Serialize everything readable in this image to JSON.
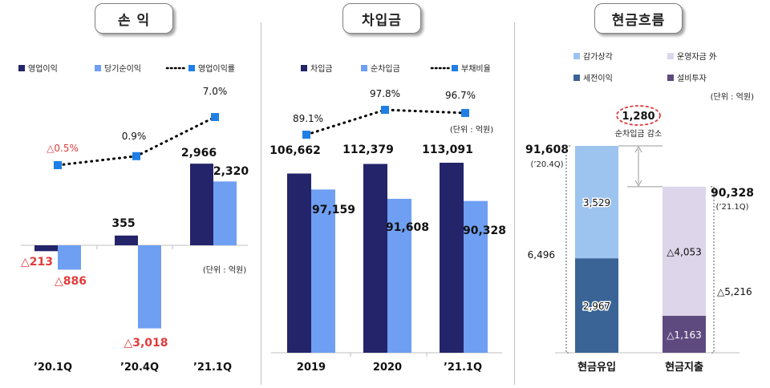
{
  "panels": {
    "profit": {
      "title": "손 익"
    },
    "debt": {
      "title": "차입금"
    },
    "cashflow": {
      "title": "현금흐름"
    }
  },
  "colors": {
    "navy": "#24246b",
    "light_blue": "#6f9ff2",
    "sky_blue": "#9dc3ef",
    "steel_blue": "#3a6496",
    "lavender": "#ddd5ea",
    "purple": "#5f4a7f",
    "marker_blue": "#1f7fe6",
    "negative_red": "#e03c3c",
    "divider": "#bfbfbf"
  },
  "chart_data": [
    {
      "type": "bar",
      "panel": "profit",
      "categories": [
        "’20.1Q",
        "’20.4Q",
        "’21.1Q"
      ],
      "series": [
        {
          "name": "영업이익",
          "values": [
            -213,
            355,
            2966
          ],
          "labels": [
            "△213",
            "355",
            "2,966"
          ]
        },
        {
          "name": "당기순이익",
          "values": [
            -886,
            -3018,
            2320
          ],
          "labels": [
            "△886",
            "△3,018",
            "2,320"
          ]
        }
      ],
      "line_series": {
        "name": "영업이익률",
        "values": [
          -0.5,
          0.9,
          7.0
        ],
        "labels": [
          "△0.5%",
          "0.9%",
          "7.0%"
        ]
      },
      "unit_note": "(단위 : 억원)",
      "legend_position": "top"
    },
    {
      "type": "bar",
      "panel": "debt",
      "categories": [
        "2019",
        "2020",
        "’21.1Q"
      ],
      "series": [
        {
          "name": "차입금",
          "values": [
            106662,
            112379,
            113091
          ],
          "labels": [
            "106,662",
            "112,379",
            "113,091"
          ]
        },
        {
          "name": "순차입금",
          "values": [
            97159,
            91608,
            90328
          ],
          "labels": [
            "97,159",
            "91,608",
            "90,328"
          ]
        }
      ],
      "line_series": {
        "name": "부채비율",
        "values": [
          89.1,
          97.8,
          96.7
        ],
        "labels": [
          "89.1%",
          "97.8%",
          "96.7%"
        ]
      },
      "unit_note": "(단위 : 억원)",
      "legend_position": "top"
    },
    {
      "type": "bar",
      "panel": "cashflow",
      "stacked": true,
      "categories": [
        "현금유입",
        "현금지출"
      ],
      "legend": [
        "감가상각",
        "운영자금 外",
        "세전이익",
        "설비투자"
      ],
      "segments": {
        "inflow": [
          {
            "name": "세전이익",
            "value": 2967,
            "label": "2,967"
          },
          {
            "name": "감가상각",
            "value": 3529,
            "label": "3,529"
          }
        ],
        "outflow": [
          {
            "name": "설비투자",
            "value": 1163,
            "label": "△1,163"
          },
          {
            "name": "운영자금 外",
            "value": 4053,
            "label": "△4,053"
          }
        ]
      },
      "inflow_total": {
        "value": 6496,
        "label": "6,496"
      },
      "outflow_total": {
        "value": 5216,
        "label": "△5,216"
      },
      "start": {
        "value": 91608,
        "label": "91,608",
        "period": "(’20.4Q)"
      },
      "end": {
        "value": 90328,
        "label": "90,328",
        "period": "(’21.1Q)"
      },
      "reduction": {
        "value": 1280,
        "label": "1,280",
        "text": "순차입금 감소"
      },
      "unit_note": "(단위 : 억원)"
    }
  ]
}
